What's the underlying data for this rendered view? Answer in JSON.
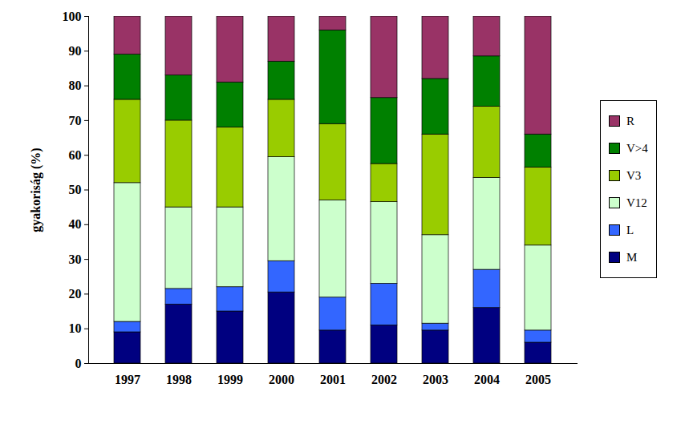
{
  "chart_data": {
    "type": "bar",
    "stacked": true,
    "legend": "right",
    "y_label": "gyakoriság (%)",
    "categories": [
      "1997",
      "1998",
      "1999",
      "2000",
      "2001",
      "2002",
      "2003",
      "2004",
      "2005"
    ],
    "series": [
      {
        "name": "M",
        "color": "#000080",
        "values": [
          9,
          17,
          15,
          20.5,
          9.5,
          11,
          9.5,
          16,
          6
        ]
      },
      {
        "name": "L",
        "color": "#3366ff",
        "values": [
          3,
          4.5,
          7,
          9,
          9.5,
          12,
          2,
          11,
          3.5
        ]
      },
      {
        "name": "V12",
        "color": "#ccffcc",
        "values": [
          40,
          23.5,
          23,
          30,
          28,
          23.5,
          25.5,
          26.5,
          24.5
        ]
      },
      {
        "name": "V3",
        "color": "#99cc00",
        "values": [
          24,
          25,
          23,
          16.5,
          22,
          11,
          29,
          20.5,
          22.5
        ]
      },
      {
        "name": "V>4",
        "color": "#008000",
        "values": [
          13,
          13,
          13,
          11,
          27,
          19,
          16,
          14.5,
          9.5
        ]
      },
      {
        "name": "R",
        "color": "#993366",
        "values": [
          11,
          17,
          19,
          13,
          4,
          23.5,
          18,
          11.5,
          34
        ]
      }
    ],
    "ylim": [
      0,
      100
    ],
    "yticks": [
      0,
      10,
      20,
      30,
      40,
      50,
      60,
      70,
      80,
      90,
      100
    ]
  }
}
